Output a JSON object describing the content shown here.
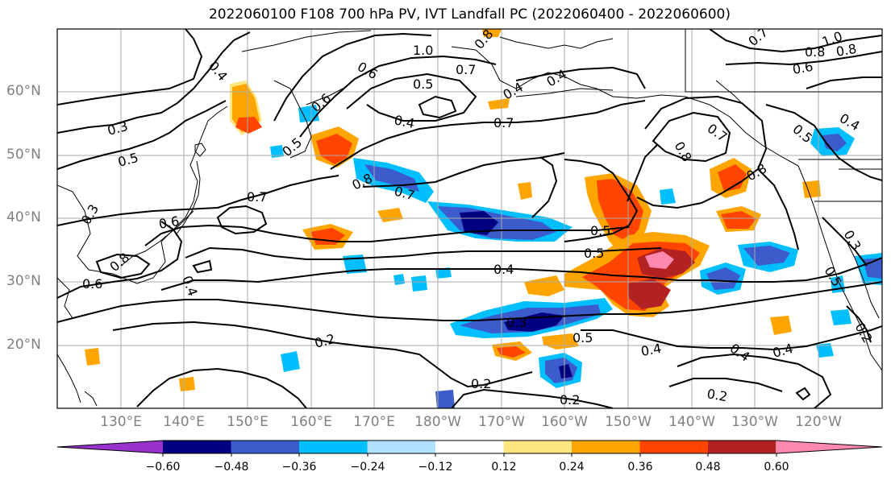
{
  "title": "2022060100 F108 700 hPa PV, IVT Landfall PC (2022060400 - 2022060600)",
  "lat_labels": [
    "60°N",
    "50°N",
    "40°N",
    "30°N",
    "20°N"
  ],
  "lon_labels": [
    "130°E",
    "140°E",
    "150°E",
    "160°E",
    "170°E",
    "180°W",
    "170°W",
    "160°W",
    "150°W",
    "140°W",
    "130°W",
    "120°W"
  ],
  "colorbar": {
    "ticks": [
      "−0.60",
      "−0.48",
      "−0.36",
      "−0.24",
      "−0.12",
      "0.12",
      "0.24",
      "0.36",
      "0.48",
      "0.60"
    ],
    "colors": [
      "#9932cc",
      "#000080",
      "#3c5ccc",
      "#00bfff",
      "#b0e2ff",
      "#ffffff",
      "#ffe680",
      "#ffa500",
      "#ff4500",
      "#b22222",
      "#ff88b0"
    ]
  },
  "contour_labels": [
    "0.4",
    "0.3",
    "0.5",
    "0.6",
    "0.7",
    "0.8",
    "1.0",
    "0.5",
    "0.4",
    "0.7",
    "0.6",
    "0.5",
    "0.4",
    "0.8",
    "0.7",
    "0.4",
    "0.5",
    "0.5",
    "0.7",
    "0.8",
    "0.8",
    "0.3",
    "0.5",
    "0.4",
    "0.7",
    "0.8",
    "0.2",
    "0.2",
    "0.2",
    "0.4",
    "0.4",
    "0.4",
    "0.2",
    "0.6",
    "0.2",
    "0.6",
    "0.3",
    "0.4",
    "0.5",
    "0.8",
    "0.7",
    "1.0",
    "0.8",
    "0.6",
    "0.5",
    "0.3",
    "0.4"
  ]
}
